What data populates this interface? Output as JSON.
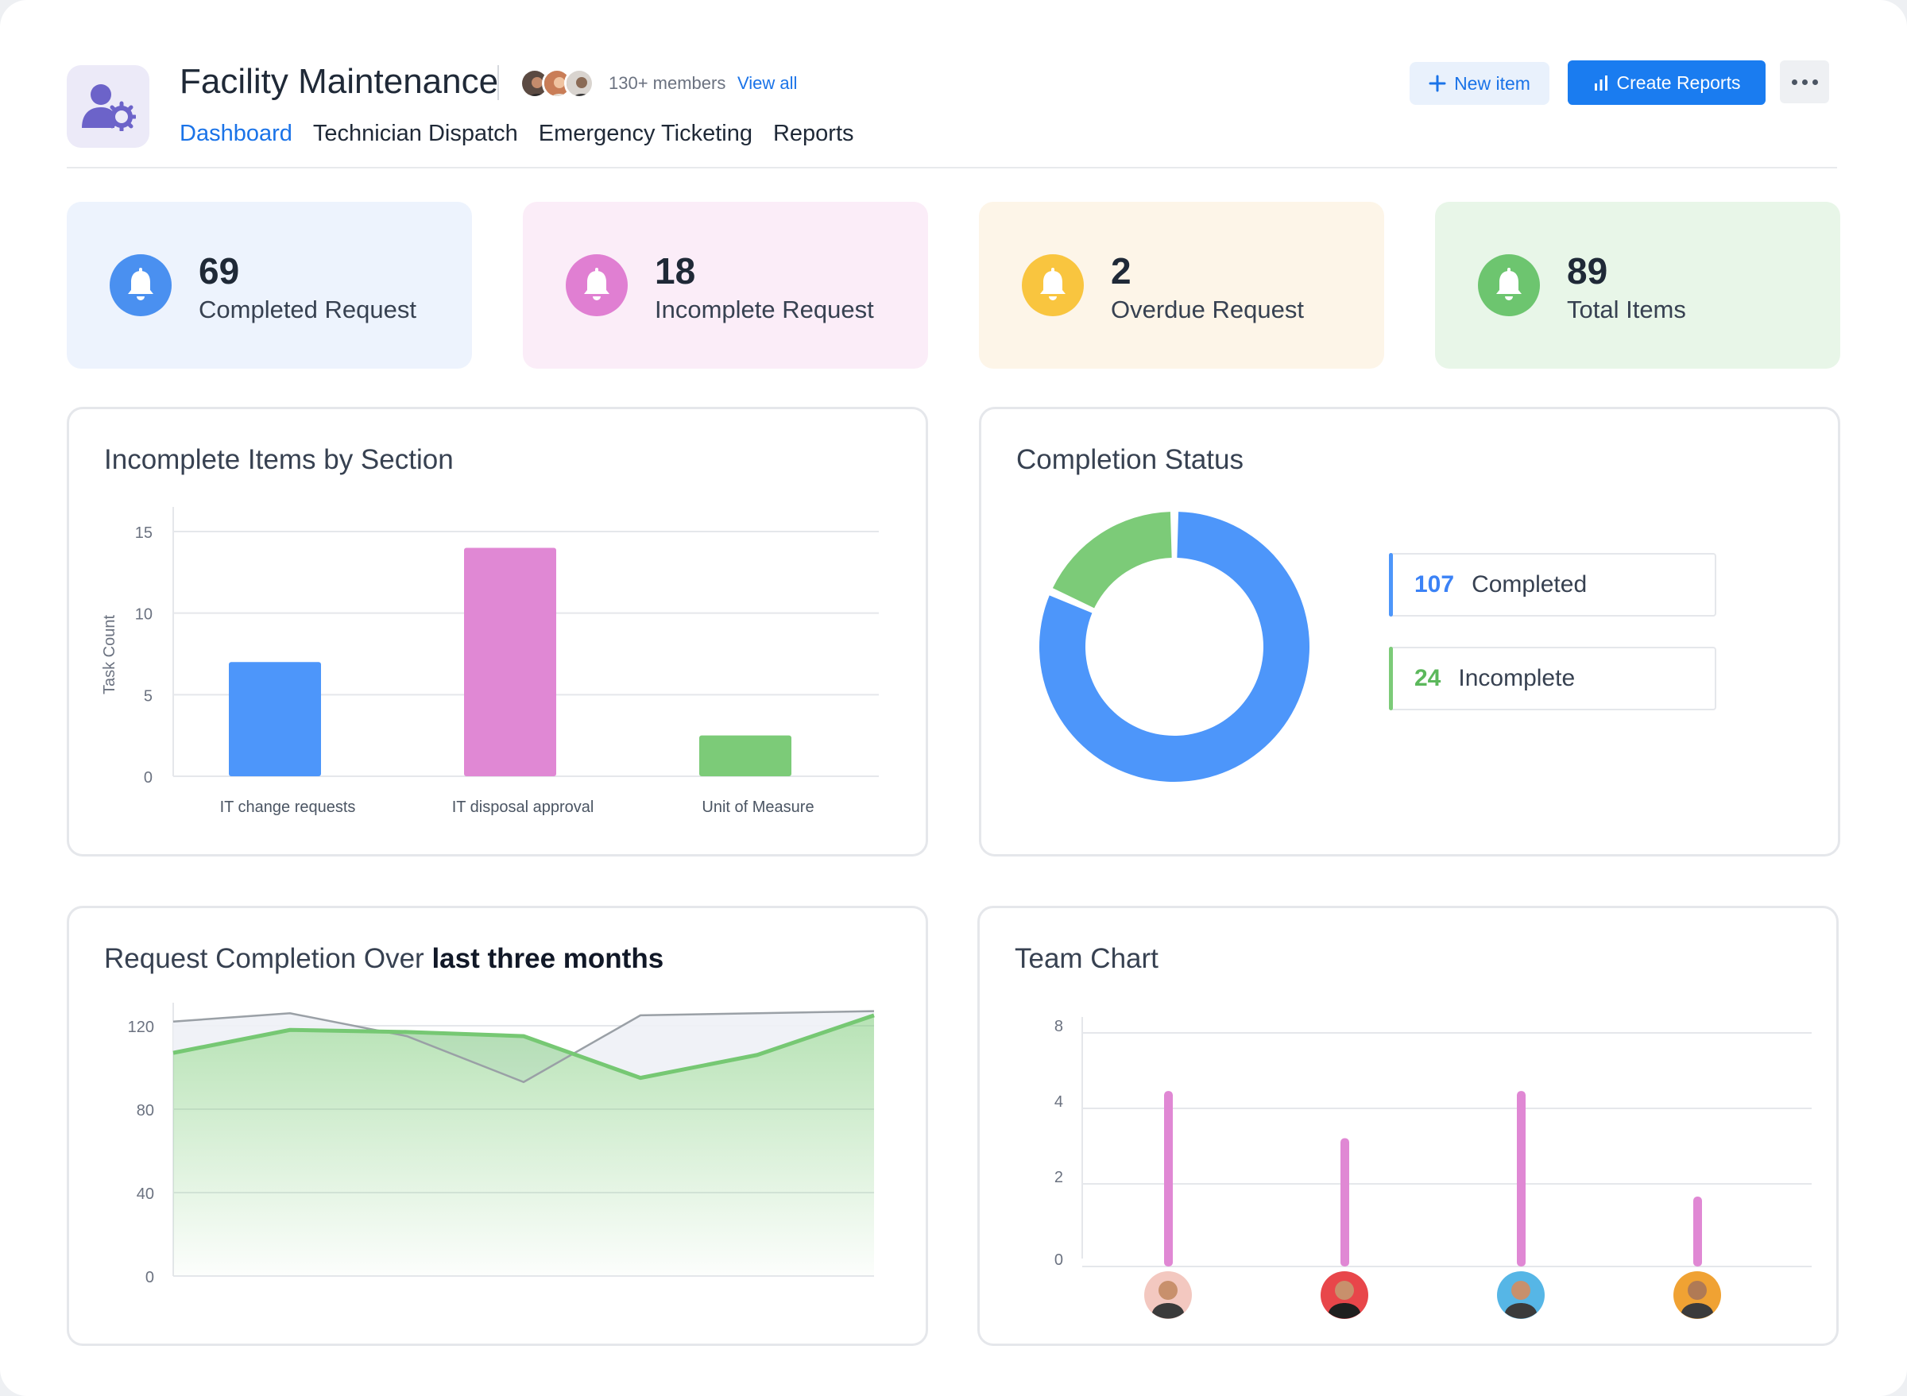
{
  "header": {
    "title": "Facility Maintenance",
    "members_text": "130+ members",
    "view_all": "View all",
    "tabs": [
      {
        "label": "Dashboard",
        "active": true
      },
      {
        "label": "Technician Dispatch",
        "active": false
      },
      {
        "label": "Emergency Ticketing",
        "active": false
      },
      {
        "label": "Reports",
        "active": false
      }
    ],
    "new_item_label": "New item",
    "create_reports_label": "Create Reports",
    "accent": "#1a73e8"
  },
  "stats": [
    {
      "value": "69",
      "label": "Completed Request",
      "bg": "#edf3fd",
      "icon_color": "#4a90f0",
      "icon": "bell-icon"
    },
    {
      "value": "18",
      "label": "Incomplete Request",
      "bg": "#fbedf8",
      "icon_color": "#e07fd2",
      "icon": "bell-icon"
    },
    {
      "value": "2",
      "label": "Overdue Request",
      "bg": "#fdf5e8",
      "icon_color": "#f9c53f",
      "icon": "bell-icon"
    },
    {
      "value": "89",
      "label": "Total Items",
      "bg": "#e8f6e8",
      "icon_color": "#6dc56f",
      "icon": "bell-icon"
    }
  ],
  "panels": {
    "incomplete_by_section": {
      "title": "Incomplete Items by Section",
      "ylabel": "Task Count",
      "chart_data": {
        "type": "bar",
        "categories": [
          "IT change requests",
          "IT disposal approval",
          "Unit of Measure"
        ],
        "values": [
          7,
          14,
          2.5
        ],
        "colors": [
          "#4d96fa",
          "#e088d4",
          "#7ccb78"
        ],
        "yticks": [
          0,
          5,
          10,
          15
        ],
        "ylim": [
          0,
          15
        ],
        "grid": true
      }
    },
    "completion_status": {
      "title": "Completion Status",
      "chart_data": {
        "type": "pie",
        "labels": [
          "Completed",
          "Incomplete"
        ],
        "values": [
          107,
          24
        ],
        "colors": [
          "#4d96fa",
          "#7ccb78"
        ]
      },
      "legend": [
        {
          "value": "107",
          "label": "Completed",
          "color": "#3b82f6"
        },
        {
          "value": "24",
          "label": "Incomplete",
          "color": "#5cb85c"
        }
      ]
    },
    "request_completion": {
      "title_prefix": "Request Completion Over",
      "title_bold": "last three months",
      "chart_data": {
        "type": "area",
        "x": [
          0,
          1,
          2,
          3,
          4,
          5,
          6
        ],
        "series": [
          {
            "values": [
              107,
              118,
              117,
              115,
              95,
              106,
              125
            ],
            "color": "#76c873",
            "fill": true
          },
          {
            "values": [
              122,
              126,
              115,
              93,
              125,
              126,
              127
            ],
            "color": "#9aa0a6",
            "fill": false
          }
        ],
        "yticks": [
          0,
          40,
          80,
          120
        ],
        "ylim": [
          0,
          128
        ],
        "grid": true
      }
    },
    "team_chart": {
      "title": "Team Chart",
      "chart_data": {
        "type": "bar",
        "categories": [
          "member-1",
          "member-2",
          "member-3",
          "member-4"
        ],
        "values": [
          4.5,
          3,
          4.5,
          1.5
        ],
        "color": "#e088d4",
        "yticks": [
          0,
          2,
          4,
          8
        ],
        "grid": true
      },
      "avatar_colors": [
        "#f3c8c0",
        "#e8464a",
        "#56b6e6",
        "#f0a233"
      ]
    }
  }
}
